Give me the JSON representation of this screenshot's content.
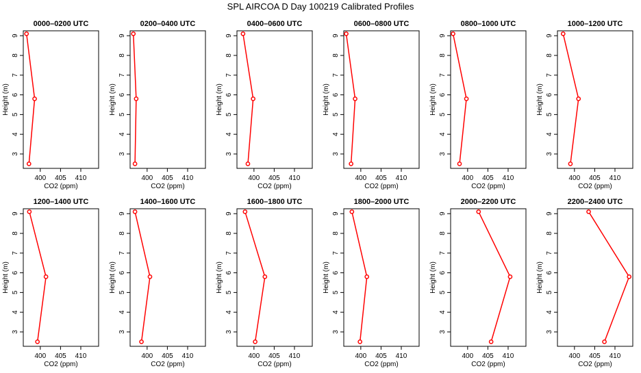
{
  "chart_data": {
    "type": "line",
    "title": "SPL AIRCOA D  Day 100219  Calibrated Profiles",
    "xlabel": "CO2 (ppm)",
    "ylabel": "Height (m)",
    "xlim": [
      395.8,
      414.4
    ],
    "ylim": [
      2.27,
      9.25
    ],
    "xticks": [
      400,
      405,
      410
    ],
    "yticks": [
      3,
      4,
      5,
      6,
      7,
      8,
      9
    ],
    "grid": false,
    "line_color": "#ff0000",
    "heights": [
      9.1,
      5.8,
      2.5
    ],
    "panels": [
      {
        "title": "0000–0200 UTC",
        "co2": [
          396.6,
          398.6,
          397.2
        ]
      },
      {
        "title": "0200–0400 UTC",
        "co2": [
          396.6,
          397.3,
          397.0
        ]
      },
      {
        "title": "0400–0600 UTC",
        "co2": [
          397.3,
          399.8,
          398.5
        ]
      },
      {
        "title": "0600–0800 UTC",
        "co2": [
          396.4,
          398.6,
          397.6
        ]
      },
      {
        "title": "0800–1000 UTC",
        "co2": [
          396.4,
          399.7,
          398.0
        ]
      },
      {
        "title": "1000–1200 UTC",
        "co2": [
          397.2,
          401.0,
          399.0
        ]
      },
      {
        "title": "1200–1400 UTC",
        "co2": [
          397.3,
          401.4,
          399.3
        ]
      },
      {
        "title": "1400–1600 UTC",
        "co2": [
          397.0,
          400.7,
          398.6
        ]
      },
      {
        "title": "1600–1800 UTC",
        "co2": [
          397.8,
          402.7,
          400.3
        ]
      },
      {
        "title": "1800–2000 UTC",
        "co2": [
          397.8,
          401.5,
          399.8
        ]
      },
      {
        "title": "2000–2200 UTC",
        "co2": [
          402.7,
          410.5,
          405.8
        ]
      },
      {
        "title": "2200–2400 UTC",
        "co2": [
          403.5,
          413.5,
          407.4
        ]
      }
    ]
  }
}
